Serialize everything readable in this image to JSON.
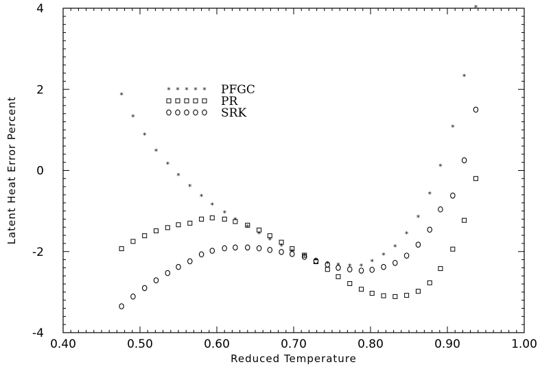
{
  "chart_data": {
    "type": "scatter",
    "xlabel": "Reduced Temperature",
    "ylabel": "Latent Heat Error Percent",
    "xlim": [
      0.4,
      1.0
    ],
    "ylim": [
      -4,
      4
    ],
    "x_ticks": [
      "0.40",
      "0.50",
      "0.60",
      "0.70",
      "0.80",
      "0.90",
      "1.00"
    ],
    "y_ticks": [
      "-4",
      "-2",
      "0",
      "2",
      "4"
    ],
    "legend_position": "upper-left",
    "grid": false,
    "series": [
      {
        "name": "PFGC",
        "marker": "*",
        "x": [
          0.476,
          0.491,
          0.506,
          0.521,
          0.536,
          0.55,
          0.565,
          0.58,
          0.594,
          0.61,
          0.624,
          0.64,
          0.655,
          0.669,
          0.684,
          0.698,
          0.714,
          0.729,
          0.744,
          0.758,
          0.773,
          0.788,
          0.802,
          0.817,
          0.832,
          0.847,
          0.862,
          0.877,
          0.891,
          0.907,
          0.922,
          0.937
        ],
        "y": [
          1.88,
          1.34,
          0.89,
          0.49,
          0.17,
          -0.11,
          -0.38,
          -0.63,
          -0.84,
          -1.03,
          -1.2,
          -1.38,
          -1.55,
          -1.7,
          -1.85,
          -1.98,
          -2.1,
          -2.2,
          -2.28,
          -2.32,
          -2.34,
          -2.34,
          -2.23,
          -2.07,
          -1.87,
          -1.55,
          -1.14,
          -0.57,
          0.12,
          1.08,
          2.33,
          4.03
        ]
      },
      {
        "name": "PR",
        "marker": "square",
        "x": [
          0.476,
          0.491,
          0.506,
          0.521,
          0.536,
          0.55,
          0.565,
          0.58,
          0.594,
          0.61,
          0.624,
          0.64,
          0.655,
          0.669,
          0.684,
          0.698,
          0.714,
          0.729,
          0.744,
          0.758,
          0.773,
          0.788,
          0.802,
          0.817,
          0.832,
          0.847,
          0.862,
          0.877,
          0.891,
          0.907,
          0.922,
          0.937
        ],
        "y": [
          -1.93,
          -1.75,
          -1.61,
          -1.49,
          -1.41,
          -1.34,
          -1.3,
          -1.2,
          -1.17,
          -1.2,
          -1.26,
          -1.35,
          -1.47,
          -1.61,
          -1.77,
          -1.93,
          -2.09,
          -2.25,
          -2.44,
          -2.62,
          -2.79,
          -2.93,
          -3.03,
          -3.09,
          -3.11,
          -3.08,
          -2.98,
          -2.77,
          -2.42,
          -1.94,
          -1.23,
          -0.2
        ]
      },
      {
        "name": "SRK",
        "marker": "circle",
        "x": [
          0.476,
          0.491,
          0.506,
          0.521,
          0.536,
          0.55,
          0.565,
          0.58,
          0.594,
          0.61,
          0.624,
          0.64,
          0.655,
          0.669,
          0.684,
          0.698,
          0.714,
          0.729,
          0.744,
          0.758,
          0.773,
          0.788,
          0.802,
          0.817,
          0.832,
          0.847,
          0.862,
          0.877,
          0.891,
          0.907,
          0.922,
          0.937
        ],
        "y": [
          -3.35,
          -3.11,
          -2.9,
          -2.71,
          -2.53,
          -2.38,
          -2.24,
          -2.07,
          -1.98,
          -1.92,
          -1.9,
          -1.9,
          -1.92,
          -1.96,
          -2.01,
          -2.06,
          -2.13,
          -2.23,
          -2.32,
          -2.4,
          -2.44,
          -2.47,
          -2.45,
          -2.38,
          -2.28,
          -2.1,
          -1.83,
          -1.46,
          -0.96,
          -0.62,
          0.25,
          1.5
        ]
      }
    ]
  }
}
